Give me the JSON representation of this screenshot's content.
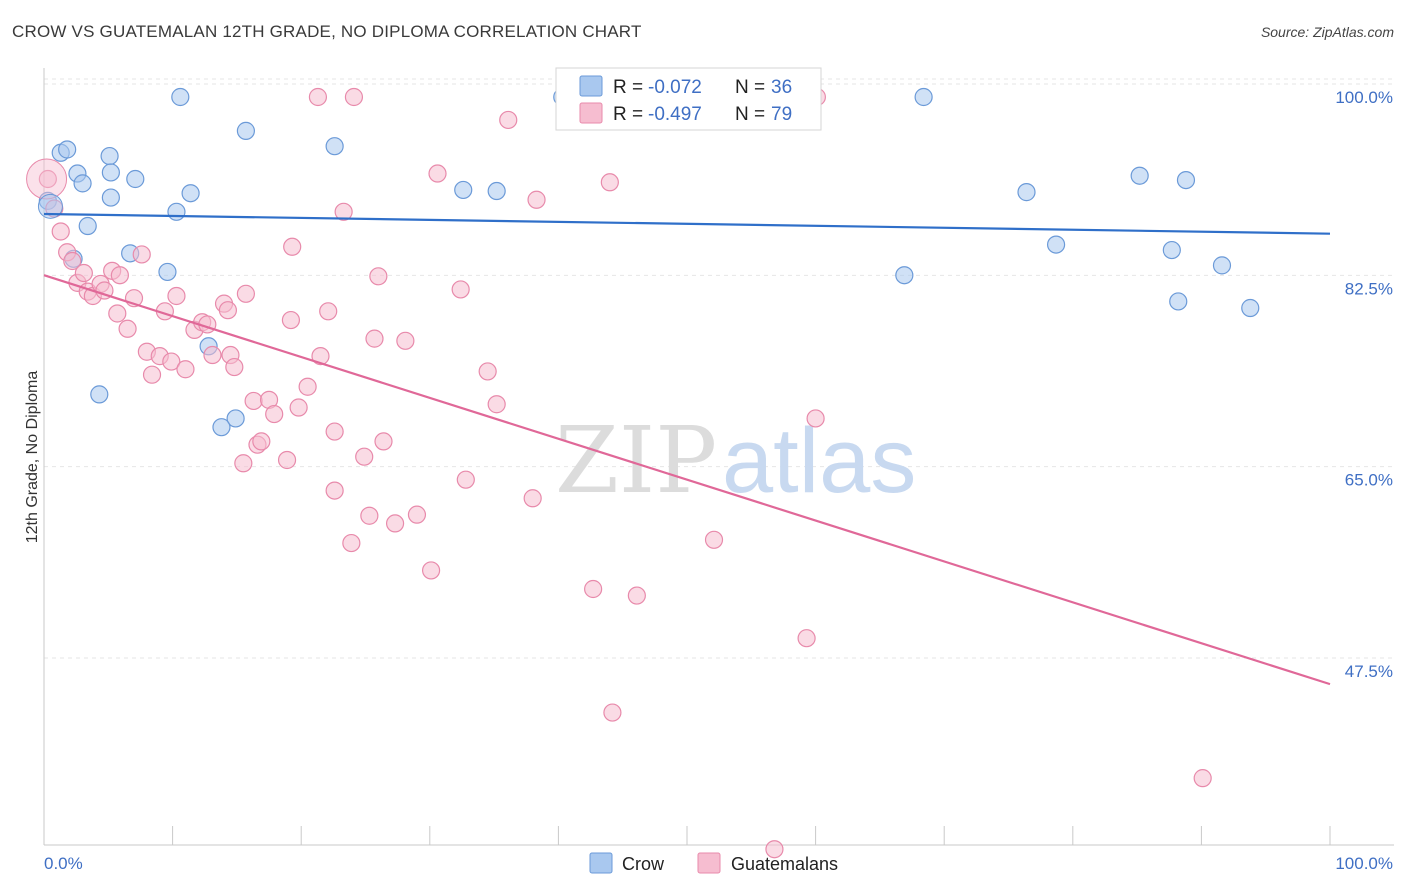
{
  "title": "CROW VS GUATEMALAN 12TH GRADE, NO DIPLOMA CORRELATION CHART",
  "source": "Source: ZipAtlas.com",
  "watermark": {
    "zip": "ZIP",
    "atlas": "atlas"
  },
  "colors": {
    "crow": "#a9c8ef",
    "crow_stroke": "#6b9ad8",
    "crow_line": "#2f6fc9",
    "guatemalan": "#f6bdd0",
    "guatemalan_stroke": "#e88aab",
    "guatemalan_line": "#e06898",
    "axis_text": "#3f6fc4"
  },
  "legend": {
    "r_label": "R =",
    "n_label": "N =",
    "items": [
      {
        "r": "-0.072",
        "n": "36"
      },
      {
        "r": "-0.497",
        "n": "79"
      }
    ]
  },
  "bottom_legend": [
    "Crow",
    "Guatemalans"
  ],
  "chart_data": {
    "type": "scatter",
    "title": "CROW VS GUATEMALAN 12TH GRADE, NO DIPLOMA CORRELATION CHART",
    "xlabel": "",
    "ylabel": "12th Grade, No Diploma",
    "xlim": [
      0,
      100
    ],
    "ylim": [
      30,
      101.5
    ],
    "y_ticks": [
      47.5,
      65.0,
      82.5,
      100.0
    ],
    "y_tick_labels": [
      "47.5%",
      "65.0%",
      "82.5%",
      "100.0%"
    ],
    "x_tick_labels": [
      "0.0%",
      "100.0%"
    ],
    "grid": "horizontal dashed",
    "legend_position": "top-center",
    "series": [
      {
        "name": "Crow",
        "r": -0.072,
        "n": 36,
        "trend": {
          "x": [
            0,
            100
          ],
          "y": [
            89.3,
            87.5
          ]
        },
        "points": [
          {
            "x": 0.3,
            "y": 90.5
          },
          {
            "x": 1.3,
            "y": 94.9
          },
          {
            "x": 1.8,
            "y": 95.2
          },
          {
            "x": 2.6,
            "y": 93.0
          },
          {
            "x": 3.0,
            "y": 92.1
          },
          {
            "x": 3.4,
            "y": 88.2
          },
          {
            "x": 2.3,
            "y": 85.2
          },
          {
            "x": 5.1,
            "y": 94.6
          },
          {
            "x": 5.2,
            "y": 93.1
          },
          {
            "x": 5.2,
            "y": 90.8
          },
          {
            "x": 7.1,
            "y": 92.5
          },
          {
            "x": 6.7,
            "y": 85.7
          },
          {
            "x": 10.6,
            "y": 100.0
          },
          {
            "x": 10.3,
            "y": 89.5
          },
          {
            "x": 11.4,
            "y": 91.2
          },
          {
            "x": 9.6,
            "y": 84.0
          },
          {
            "x": 15.7,
            "y": 96.9
          },
          {
            "x": 12.8,
            "y": 77.2
          },
          {
            "x": 14.9,
            "y": 70.6
          },
          {
            "x": 13.8,
            "y": 69.8
          },
          {
            "x": 4.3,
            "y": 72.8
          },
          {
            "x": 22.6,
            "y": 95.5
          },
          {
            "x": 32.6,
            "y": 91.5
          },
          {
            "x": 35.2,
            "y": 91.4
          },
          {
            "x": 40.3,
            "y": 100.0
          },
          {
            "x": 56.3,
            "y": 100.0
          },
          {
            "x": 68.4,
            "y": 100.0
          },
          {
            "x": 76.4,
            "y": 91.3
          },
          {
            "x": 66.9,
            "y": 83.7
          },
          {
            "x": 78.7,
            "y": 86.5
          },
          {
            "x": 85.2,
            "y": 92.8
          },
          {
            "x": 87.7,
            "y": 86.0
          },
          {
            "x": 88.8,
            "y": 92.4
          },
          {
            "x": 88.2,
            "y": 81.3
          },
          {
            "x": 91.6,
            "y": 84.6
          },
          {
            "x": 93.8,
            "y": 80.7
          }
        ]
      },
      {
        "name": "Guatemalans",
        "r": -0.497,
        "n": 79,
        "trend": {
          "x": [
            0,
            100
          ],
          "y": [
            83.7,
            46.3
          ]
        },
        "points": [
          {
            "x": 0.3,
            "y": 92.5
          },
          {
            "x": 0.8,
            "y": 89.8
          },
          {
            "x": 1.3,
            "y": 87.7
          },
          {
            "x": 1.8,
            "y": 85.8
          },
          {
            "x": 2.2,
            "y": 85.0
          },
          {
            "x": 2.6,
            "y": 83.0
          },
          {
            "x": 3.1,
            "y": 83.9
          },
          {
            "x": 3.4,
            "y": 82.2
          },
          {
            "x": 3.8,
            "y": 81.8
          },
          {
            "x": 4.4,
            "y": 82.9
          },
          {
            "x": 4.7,
            "y": 82.3
          },
          {
            "x": 5.3,
            "y": 84.1
          },
          {
            "x": 5.9,
            "y": 83.7
          },
          {
            "x": 7.0,
            "y": 81.6
          },
          {
            "x": 7.6,
            "y": 85.6
          },
          {
            "x": 5.7,
            "y": 80.2
          },
          {
            "x": 6.5,
            "y": 78.8
          },
          {
            "x": 8.0,
            "y": 76.7
          },
          {
            "x": 8.4,
            "y": 74.6
          },
          {
            "x": 9.0,
            "y": 76.3
          },
          {
            "x": 9.4,
            "y": 80.4
          },
          {
            "x": 9.9,
            "y": 75.8
          },
          {
            "x": 10.3,
            "y": 81.8
          },
          {
            "x": 11.0,
            "y": 75.1
          },
          {
            "x": 11.7,
            "y": 78.7
          },
          {
            "x": 12.3,
            "y": 79.4
          },
          {
            "x": 12.7,
            "y": 79.2
          },
          {
            "x": 13.1,
            "y": 76.4
          },
          {
            "x": 14.0,
            "y": 81.1
          },
          {
            "x": 14.3,
            "y": 80.5
          },
          {
            "x": 14.5,
            "y": 76.4
          },
          {
            "x": 14.8,
            "y": 75.3
          },
          {
            "x": 15.5,
            "y": 66.5
          },
          {
            "x": 15.7,
            "y": 82.0
          },
          {
            "x": 16.3,
            "y": 72.2
          },
          {
            "x": 16.6,
            "y": 68.2
          },
          {
            "x": 16.9,
            "y": 68.5
          },
          {
            "x": 17.5,
            "y": 72.3
          },
          {
            "x": 17.9,
            "y": 71.0
          },
          {
            "x": 18.9,
            "y": 66.8
          },
          {
            "x": 19.2,
            "y": 79.6
          },
          {
            "x": 19.3,
            "y": 86.3
          },
          {
            "x": 19.8,
            "y": 71.6
          },
          {
            "x": 20.5,
            "y": 73.5
          },
          {
            "x": 21.5,
            "y": 76.3
          },
          {
            "x": 22.1,
            "y": 80.4
          },
          {
            "x": 22.6,
            "y": 69.4
          },
          {
            "x": 22.6,
            "y": 64.0
          },
          {
            "x": 23.3,
            "y": 89.5
          },
          {
            "x": 23.9,
            "y": 59.2
          },
          {
            "x": 24.9,
            "y": 67.1
          },
          {
            "x": 25.3,
            "y": 61.7
          },
          {
            "x": 25.7,
            "y": 77.9
          },
          {
            "x": 26.0,
            "y": 83.6
          },
          {
            "x": 26.4,
            "y": 68.5
          },
          {
            "x": 27.3,
            "y": 61.0
          },
          {
            "x": 28.1,
            "y": 77.7
          },
          {
            "x": 29.0,
            "y": 61.8
          },
          {
            "x": 30.1,
            "y": 56.7
          },
          {
            "x": 30.6,
            "y": 93.0
          },
          {
            "x": 32.4,
            "y": 82.4
          },
          {
            "x": 32.8,
            "y": 65.0
          },
          {
            "x": 34.5,
            "y": 74.9
          },
          {
            "x": 35.2,
            "y": 71.9
          },
          {
            "x": 36.1,
            "y": 97.9
          },
          {
            "x": 38.0,
            "y": 63.3
          },
          {
            "x": 38.3,
            "y": 90.6
          },
          {
            "x": 44.0,
            "y": 92.2
          },
          {
            "x": 44.2,
            "y": 43.7
          },
          {
            "x": 46.1,
            "y": 54.4
          },
          {
            "x": 52.1,
            "y": 59.5
          },
          {
            "x": 56.8,
            "y": 31.2
          },
          {
            "x": 60.0,
            "y": 70.6
          },
          {
            "x": 59.3,
            "y": 50.5
          },
          {
            "x": 60.1,
            "y": 100.0
          },
          {
            "x": 21.3,
            "y": 100.0
          },
          {
            "x": 24.1,
            "y": 100.0
          },
          {
            "x": 42.7,
            "y": 55.0
          },
          {
            "x": 90.1,
            "y": 37.7
          }
        ]
      }
    ]
  }
}
